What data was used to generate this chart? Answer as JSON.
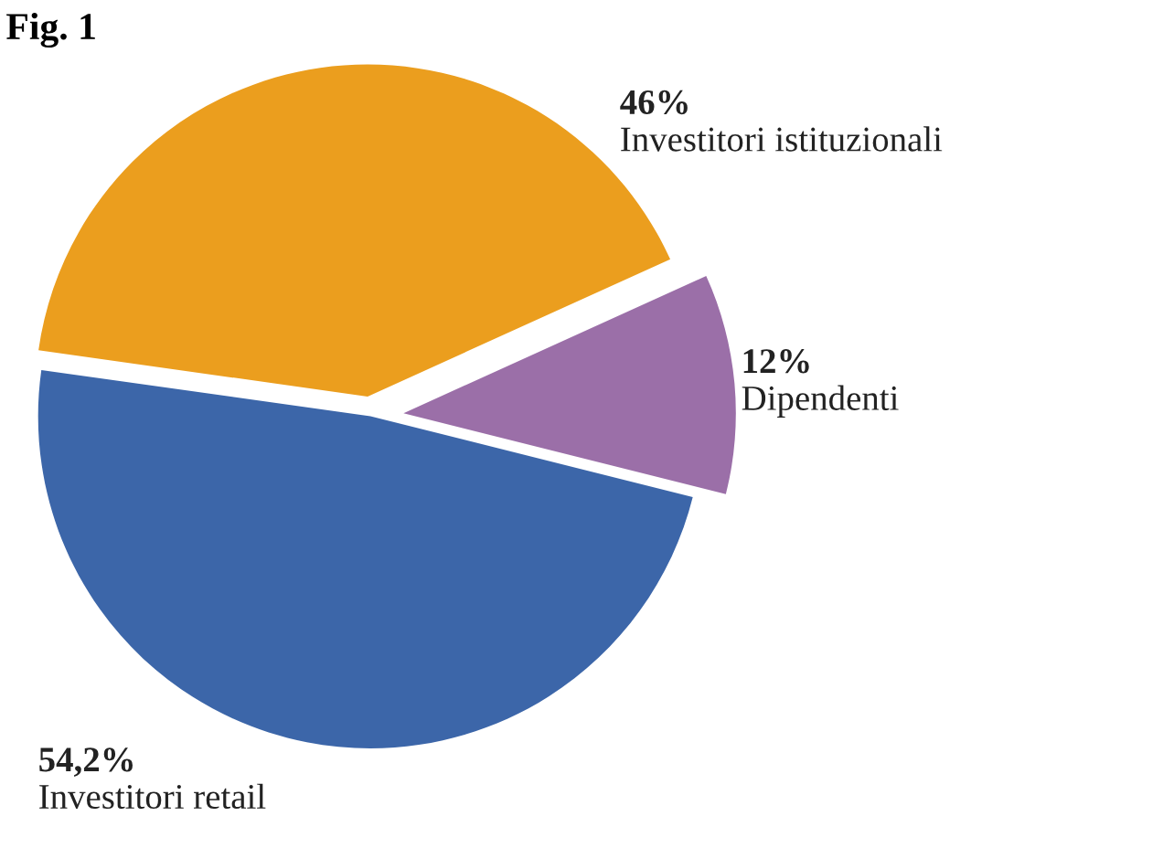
{
  "chart_data": {
    "type": "pie",
    "title": "Fig. 1",
    "categories": [
      "Investitori istituzionali",
      "Dipendenti",
      "Investitori retail"
    ],
    "values": [
      46,
      12,
      54.2
    ],
    "value_labels": [
      "46%",
      "12%",
      "54,2%"
    ],
    "colors": [
      "#eb9e1e",
      "#9b6fa8",
      "#3c66a9"
    ],
    "legend": false
  }
}
